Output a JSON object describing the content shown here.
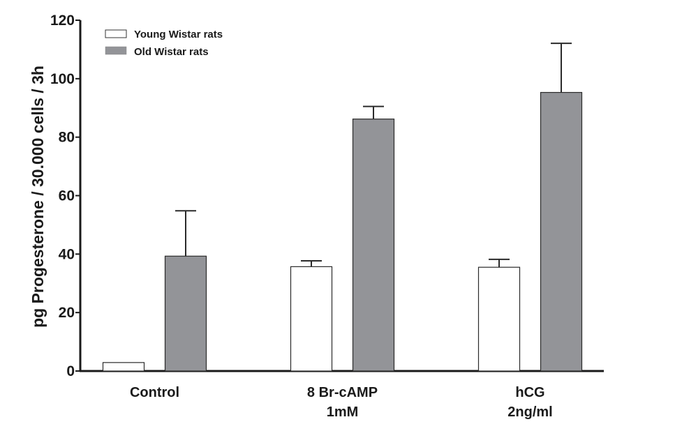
{
  "chart_data": {
    "type": "bar",
    "title": "",
    "xlabel": "",
    "ylabel": "pg Progesterone / 30.000 cells / 3h",
    "ylim": [
      0,
      120
    ],
    "yticks": [
      0,
      20,
      40,
      60,
      80,
      100,
      120
    ],
    "grid": false,
    "legend_position": "top-left",
    "categories": [
      {
        "line1": "Control",
        "line2": ""
      },
      {
        "line1": "8 Br-cAMP",
        "line2": "1mM"
      },
      {
        "line1": "hCG",
        "line2": "2ng/ml"
      }
    ],
    "series": [
      {
        "name": "Young Wistar rats",
        "color": "#ffffff",
        "values": [
          2.9,
          35.7,
          35.5
        ],
        "error_upper": [
          2.9,
          37.7,
          38.2
        ]
      },
      {
        "name": "Old Wistar rats",
        "color": "#939498",
        "values": [
          39.3,
          86.2,
          95.3
        ],
        "error_upper": [
          54.8,
          90.5,
          112.1
        ]
      }
    ]
  }
}
